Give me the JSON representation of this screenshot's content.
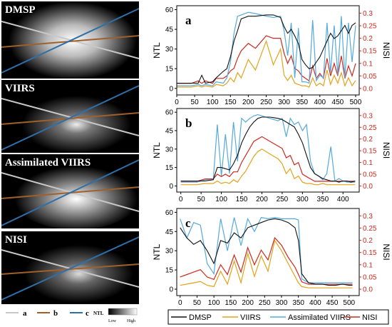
{
  "tiles": [
    {
      "label": "DMSP"
    },
    {
      "label": "VIIRS"
    },
    {
      "label": "Assimilated VIIRS"
    },
    {
      "label": "NISI"
    }
  ],
  "map_legend": {
    "lines": [
      {
        "label": "a",
        "color": "#c8c8c8"
      },
      {
        "label": "b",
        "color": "#a0602a"
      },
      {
        "label": "c",
        "color": "#2f6fa8"
      }
    ],
    "ntl_label": "NTL",
    "low": "Low",
    "high": "High"
  },
  "colors": {
    "DMSP": "#111111",
    "VIIRS": "#e3a21a",
    "Assimilated VIIRS": "#55aadd",
    "NISI": "#cc2a1e",
    "nisi_axis": "#cc2a1e"
  },
  "chart_data": [
    {
      "type": "line",
      "panel_label": "a",
      "ylabel": "NTL",
      "ylabel_right": "NISI",
      "xlim": [
        0,
        510
      ],
      "ylim": [
        -5,
        63
      ],
      "ylim_right": [
        -0.026,
        0.33
      ],
      "xticks": [
        0,
        50,
        100,
        150,
        200,
        250,
        300,
        350,
        400,
        450,
        500
      ],
      "yticks": [
        0,
        15,
        30,
        45,
        60
      ],
      "yticks_right": [
        0.0,
        0.05,
        0.1,
        0.15,
        0.2,
        0.25,
        0.3
      ],
      "x": [
        0,
        20,
        40,
        60,
        70,
        80,
        100,
        110,
        130,
        140,
        150,
        160,
        170,
        180,
        200,
        220,
        250,
        270,
        290,
        300,
        310,
        320,
        330,
        340,
        350,
        360,
        370,
        380,
        390,
        400,
        410,
        420,
        430,
        440,
        450,
        460,
        470,
        480,
        490,
        500
      ],
      "series": [
        {
          "name": "DMSP",
          "values": [
            4,
            4,
            4,
            4,
            10,
            4,
            5,
            8,
            13,
            15,
            24,
            36,
            44,
            53,
            55,
            55,
            56,
            56,
            54,
            47,
            42,
            45,
            40,
            34,
            22,
            18,
            15,
            16,
            20,
            24,
            30,
            36,
            42,
            38,
            40,
            44,
            48,
            42,
            48,
            50
          ]
        },
        {
          "name": "VIIRS",
          "values": [
            1,
            1,
            1,
            2,
            1,
            2,
            1,
            3,
            2,
            4,
            8,
            5,
            12,
            8,
            22,
            14,
            36,
            18,
            30,
            10,
            6,
            10,
            4,
            3,
            2,
            2,
            1,
            8,
            2,
            4,
            2,
            14,
            3,
            10,
            4,
            12,
            2,
            8,
            2,
            6
          ]
        },
        {
          "name": "Assimilated VIIRS",
          "values": [
            2,
            2,
            2,
            3,
            2,
            3,
            2,
            5,
            4,
            8,
            20,
            42,
            55,
            56,
            58,
            57,
            55,
            54,
            55,
            44,
            25,
            50,
            8,
            46,
            5,
            5,
            4,
            52,
            6,
            10,
            8,
            50,
            12,
            48,
            10,
            55,
            8,
            50,
            20,
            48
          ]
        },
        {
          "name": "NISI",
          "values": [
            0.02,
            0.02,
            0.02,
            0.03,
            0.02,
            0.03,
            0.02,
            0.04,
            0.04,
            0.05,
            0.07,
            0.08,
            0.12,
            0.15,
            0.18,
            0.16,
            0.21,
            0.2,
            0.2,
            0.14,
            0.1,
            0.13,
            0.08,
            0.07,
            0.05,
            0.04,
            0.03,
            0.09,
            0.04,
            0.06,
            0.04,
            0.12,
            0.05,
            0.1,
            0.05,
            0.13,
            0.04,
            0.09,
            0.05,
            0.1
          ]
        }
      ]
    },
    {
      "type": "line",
      "panel_label": "b",
      "ylabel": "NTL",
      "ylabel_right": "NISI",
      "xlim": [
        -10,
        440
      ],
      "ylim": [
        -5,
        63
      ],
      "ylim_right": [
        -0.026,
        0.33
      ],
      "xticks": [
        0,
        50,
        100,
        150,
        200,
        250,
        300,
        350,
        400
      ],
      "yticks": [
        0,
        15,
        30,
        45,
        60
      ],
      "yticks_right": [
        0.0,
        0.05,
        0.1,
        0.15,
        0.2,
        0.25,
        0.3
      ],
      "x": [
        0,
        20,
        40,
        60,
        80,
        90,
        100,
        110,
        120,
        130,
        140,
        150,
        160,
        170,
        180,
        190,
        200,
        220,
        240,
        250,
        260,
        270,
        280,
        290,
        300,
        310,
        320,
        330,
        340,
        350,
        360,
        370,
        380,
        390,
        400,
        410,
        420,
        430
      ],
      "series": [
        {
          "name": "DMSP",
          "values": [
            4,
            4,
            4,
            4,
            5,
            15,
            15,
            14,
            13,
            18,
            25,
            35,
            42,
            48,
            52,
            55,
            56,
            56,
            55,
            54,
            52,
            50,
            48,
            42,
            35,
            25,
            15,
            10,
            8,
            6,
            5,
            4,
            4,
            3,
            4,
            4,
            3,
            4
          ]
        },
        {
          "name": "VIIRS",
          "values": [
            1,
            1,
            1,
            2,
            2,
            4,
            2,
            3,
            2,
            5,
            3,
            8,
            12,
            18,
            24,
            28,
            30,
            26,
            22,
            18,
            10,
            14,
            6,
            8,
            3,
            2,
            2,
            1,
            1,
            2,
            1,
            1,
            1,
            1,
            1,
            1,
            1,
            1
          ]
        },
        {
          "name": "Assimilated VIIRS",
          "values": [
            3,
            3,
            3,
            5,
            5,
            50,
            8,
            42,
            10,
            52,
            20,
            55,
            52,
            55,
            57,
            58,
            57,
            55,
            53,
            55,
            40,
            55,
            50,
            52,
            45,
            50,
            20,
            10,
            8,
            5,
            10,
            32,
            4,
            6,
            4,
            3,
            3,
            3
          ]
        },
        {
          "name": "NISI",
          "values": [
            0.02,
            0.02,
            0.02,
            0.03,
            0.03,
            0.05,
            0.04,
            0.05,
            0.04,
            0.06,
            0.06,
            0.1,
            0.13,
            0.16,
            0.19,
            0.2,
            0.21,
            0.19,
            0.17,
            0.16,
            0.12,
            0.13,
            0.09,
            0.1,
            0.05,
            0.04,
            0.03,
            0.02,
            0.02,
            0.02,
            0.02,
            0.02,
            0.02,
            0.02,
            0.02,
            0.02,
            0.02,
            0.02
          ]
        }
      ]
    },
    {
      "type": "line",
      "panel_label": "c",
      "ylabel": "NTL",
      "ylabel_right": "NISI",
      "xlim": [
        -10,
        530
      ],
      "ylim": [
        -5,
        63
      ],
      "ylim_right": [
        -0.026,
        0.33
      ],
      "xticks": [
        0,
        50,
        100,
        150,
        200,
        250,
        300,
        350,
        400,
        450,
        500
      ],
      "yticks": [
        0,
        15,
        30,
        45,
        60
      ],
      "yticks_right": [
        0.0,
        0.05,
        0.1,
        0.15,
        0.2,
        0.25,
        0.3
      ],
      "x": [
        0,
        20,
        40,
        60,
        80,
        100,
        120,
        140,
        160,
        180,
        200,
        220,
        240,
        260,
        280,
        300,
        320,
        340,
        350,
        360,
        380,
        400,
        420,
        440,
        460,
        480,
        500,
        510
      ],
      "series": [
        {
          "name": "DMSP",
          "values": [
            48,
            40,
            35,
            38,
            30,
            20,
            38,
            36,
            44,
            40,
            48,
            50,
            52,
            54,
            55,
            54,
            52,
            48,
            38,
            12,
            5,
            4,
            4,
            3,
            3,
            4,
            3,
            3
          ]
        },
        {
          "name": "VIIRS",
          "values": [
            3,
            4,
            5,
            6,
            3,
            2,
            14,
            4,
            22,
            5,
            28,
            10,
            26,
            14,
            38,
            30,
            20,
            10,
            5,
            2,
            1,
            1,
            1,
            1,
            1,
            1,
            1,
            1
          ]
        },
        {
          "name": "Assimilated VIIRS",
          "values": [
            55,
            40,
            52,
            50,
            20,
            12,
            55,
            30,
            56,
            34,
            55,
            45,
            56,
            55,
            56,
            55,
            55,
            55,
            54,
            8,
            5,
            5,
            5,
            5,
            5,
            5,
            5,
            5
          ]
        },
        {
          "name": "NISI",
          "values": [
            0.05,
            0.06,
            0.07,
            0.08,
            0.05,
            0.04,
            0.1,
            0.06,
            0.14,
            0.07,
            0.17,
            0.1,
            0.16,
            0.12,
            0.21,
            0.18,
            0.13,
            0.09,
            0.06,
            0.03,
            0.02,
            0.02,
            0.02,
            0.02,
            0.02,
            0.02,
            0.02,
            0.02
          ]
        }
      ]
    }
  ],
  "legend": [
    "DMSP",
    "VIIRS",
    "Assimilated VIIRS",
    "NISI"
  ]
}
